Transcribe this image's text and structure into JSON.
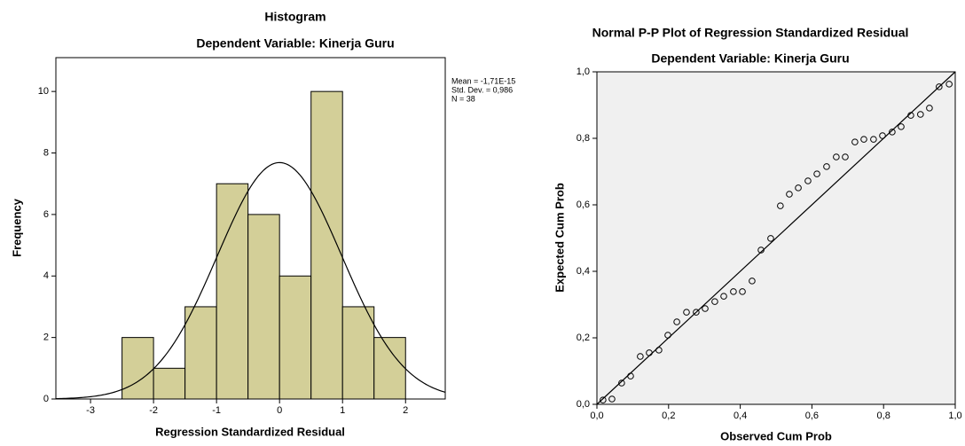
{
  "chart_data": [
    {
      "type": "histogram",
      "title": "Histogram",
      "subtitle": "Dependent Variable: Kinerja Guru",
      "xlabel": "Regression Standardized Residual",
      "ylabel": "Frequency",
      "bins": [
        -2.5,
        -2,
        -1.5,
        -1,
        -0.5,
        0,
        0.5,
        1,
        1.5,
        2
      ],
      "values": [
        2,
        1,
        3,
        7,
        6,
        4,
        10,
        3,
        2
      ],
      "color": "#d3cf98",
      "xlim": [
        -3.55,
        2.63
      ],
      "ylim": [
        0,
        11.1
      ],
      "xticks": [
        -3,
        -2,
        -1,
        0,
        1,
        2
      ],
      "yticks": [
        0,
        2,
        4,
        6,
        8,
        10
      ],
      "stats": {
        "mean": {
          "value": -1.71e-15,
          "label": "Mean = -1,71E-15"
        },
        "sd": {
          "value": 0.986,
          "label": "Std. Dev. = 0,986"
        },
        "n": {
          "value": 38,
          "label": "N = 38"
        }
      }
    },
    {
      "type": "scatter",
      "title": "Normal P-P Plot of Regression Standardized Residual",
      "subtitle": "Dependent Variable: Kinerja Guru",
      "xlabel": "Observed Cum Prob",
      "ylabel": "Expected Cum Prob",
      "x": [
        0.017,
        0.042,
        0.069,
        0.094,
        0.121,
        0.146,
        0.173,
        0.198,
        0.223,
        0.25,
        0.277,
        0.302,
        0.329,
        0.354,
        0.381,
        0.406,
        0.433,
        0.458,
        0.485,
        0.512,
        0.537,
        0.562,
        0.589,
        0.614,
        0.641,
        0.668,
        0.693,
        0.72,
        0.745,
        0.772,
        0.797,
        0.824,
        0.849,
        0.876,
        0.903,
        0.928,
        0.955,
        0.983
      ],
      "values": [
        0.013,
        0.016,
        0.064,
        0.085,
        0.144,
        0.155,
        0.163,
        0.208,
        0.248,
        0.277,
        0.277,
        0.288,
        0.309,
        0.325,
        0.339,
        0.339,
        0.371,
        0.464,
        0.499,
        0.597,
        0.632,
        0.651,
        0.672,
        0.693,
        0.715,
        0.744,
        0.744,
        0.789,
        0.797,
        0.797,
        0.808,
        0.819,
        0.835,
        0.869,
        0.872,
        0.891,
        0.955,
        0.963
      ],
      "xlim": [
        0,
        1
      ],
      "ylim": [
        0,
        1
      ],
      "xticks": [
        {
          "value": 0,
          "label": "0,0"
        },
        {
          "value": 0.2,
          "label": "0,2"
        },
        {
          "value": 0.4,
          "label": "0,4"
        },
        {
          "value": 0.6,
          "label": "0,6"
        },
        {
          "value": 0.8,
          "label": "0,8"
        },
        {
          "value": 1,
          "label": "1,0"
        }
      ],
      "yticks": [
        {
          "value": 0,
          "label": "0,0"
        },
        {
          "value": 0.2,
          "label": "0,2"
        },
        {
          "value": 0.4,
          "label": "0,4"
        },
        {
          "value": 0.6,
          "label": "0,6"
        },
        {
          "value": 0.8,
          "label": "0,8"
        },
        {
          "value": 1,
          "label": "1,0"
        }
      ]
    }
  ]
}
